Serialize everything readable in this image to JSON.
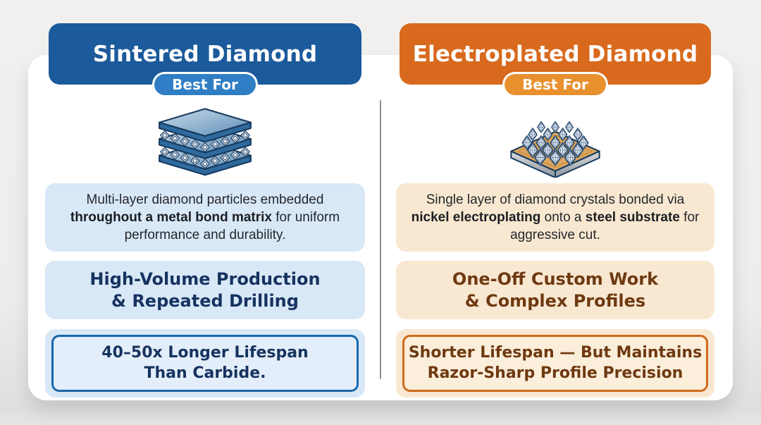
{
  "page": {
    "background_color": "#efeeed",
    "card_color": "#ffffff",
    "divider_color": "#8f9094"
  },
  "columns": [
    {
      "title": "Sintered Diamond",
      "badge_label": "Best For",
      "icon": "sintered-multilayer-diamond-icon",
      "description_segments": [
        {
          "text": "Multi-layer diamond particles embedded ",
          "bold": false
        },
        {
          "text": "throughout a metal bond matrix",
          "bold": true
        },
        {
          "text": " for uniform performance and durability.",
          "bold": false
        }
      ],
      "best_for_lines": [
        "High-Volume Production",
        "& Repeated Drilling"
      ],
      "highlight_lines": [
        "40–50x Longer Lifespan",
        "Than Carbide."
      ],
      "colors": {
        "header": "#1b5a9b",
        "badge": "#2f7ec5",
        "box": "#d9e8f7",
        "text": "#16335f",
        "border": "#1a67ab"
      }
    },
    {
      "title": "Electroplated Diamond",
      "badge_label": "Best For",
      "icon": "electroplated-single-layer-diamond-icon",
      "description_segments": [
        {
          "text": "Single layer of diamond crystals bonded via ",
          "bold": false
        },
        {
          "text": "nickel electroplating",
          "bold": true
        },
        {
          "text": " onto a ",
          "bold": false
        },
        {
          "text": "steel substrate",
          "bold": true
        },
        {
          "text": " for aggressive cut.",
          "bold": false
        }
      ],
      "best_for_lines": [
        "One-Off Custom Work",
        "& Complex Profiles"
      ],
      "highlight_lines": [
        "Shorter Lifespan — But Maintains",
        "Razor-Sharp Profile Precision"
      ],
      "colors": {
        "header": "#d8691d",
        "badge": "#e8902e",
        "box": "#f9e8d1",
        "text": "#6e3911",
        "border": "#d06a1e"
      }
    }
  ]
}
